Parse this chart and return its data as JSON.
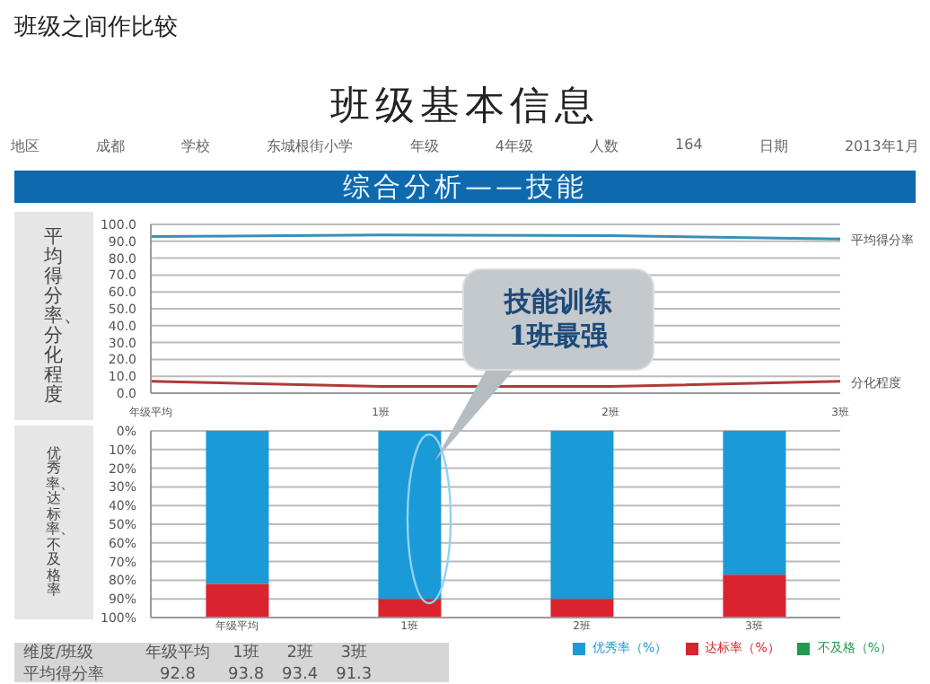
{
  "chart_data": [
    {
      "type": "line",
      "title": "班级基本信息",
      "subtitle": "综合分析——技能",
      "ylabel": "平均得分率、分化程度",
      "annotations": [
        "班级之间作比较",
        "地区",
        "成都",
        "学校",
        "东城根街小学",
        "年级",
        "4年级",
        "人数",
        "164",
        "日期",
        "2013年1月",
        "技能训练\n1班最强"
      ],
      "categories": [
        "年级平均",
        "1班",
        "2班",
        "3班"
      ],
      "series": [
        {
          "name": "平均得分率",
          "color": "#3a8fb7",
          "values": [
            92.8,
            93.8,
            93.4,
            91.3
          ]
        },
        {
          "name": "分化程度",
          "color": "#b03a3a",
          "values": [
            7,
            4,
            4,
            7
          ]
        }
      ],
      "ylim": [
        0,
        100
      ],
      "yticks": [
        {
          "value": 0,
          "label": "0.0"
        },
        {
          "value": 10,
          "label": "10.0"
        },
        {
          "value": 20,
          "label": "20.0"
        },
        {
          "value": 30,
          "label": "30.0"
        },
        {
          "value": 40,
          "label": "40.0"
        },
        {
          "value": 50,
          "label": "50.0"
        },
        {
          "value": 60,
          "label": "60.0"
        },
        {
          "value": 70,
          "label": "70.0"
        },
        {
          "value": 80,
          "label": "80.0"
        },
        {
          "value": 90,
          "label": "90.0"
        },
        {
          "value": 100,
          "label": "100.0"
        }
      ],
      "grid": "y",
      "legend": false,
      "marker": "none",
      "line_style": "solid"
    },
    {
      "type": "bar",
      "stacked": true,
      "ylabel": "优秀率、达标率、不及格率",
      "categories": [
        "年级平均",
        "1班",
        "2班",
        "3班"
      ],
      "series": [
        {
          "name": "优秀率（%）",
          "color": "#1a9ad6",
          "values": [
            82,
            90,
            90,
            77
          ]
        },
        {
          "name": "达标率（%）",
          "color": "#d9232e",
          "values": [
            18,
            10,
            10,
            23
          ]
        },
        {
          "name": "不及格（%）",
          "color": "#1f9a4e",
          "values": [
            0,
            0,
            0,
            0
          ]
        }
      ],
      "ylim": [
        100,
        0
      ],
      "yticks": [
        {
          "value": 0,
          "label": "0%"
        },
        {
          "value": 10,
          "label": "10%"
        },
        {
          "value": 20,
          "label": "20%"
        },
        {
          "value": 30,
          "label": "30%"
        },
        {
          "value": 40,
          "label": "40%"
        },
        {
          "value": 50,
          "label": "50%"
        },
        {
          "value": 60,
          "label": "60%"
        },
        {
          "value": 70,
          "label": "70%"
        },
        {
          "value": 80,
          "label": "80%"
        },
        {
          "value": 90,
          "label": "90%"
        },
        {
          "value": 100,
          "label": "100%"
        }
      ],
      "grid": "y",
      "legend": "bottom"
    },
    {
      "type": "other",
      "annotations": [
        "维度/班级",
        "年级平均",
        "1班",
        "2班",
        "3班",
        "平均得分率",
        "92.8",
        "93.8",
        "93.4",
        "91.3"
      ]
    }
  ]
}
